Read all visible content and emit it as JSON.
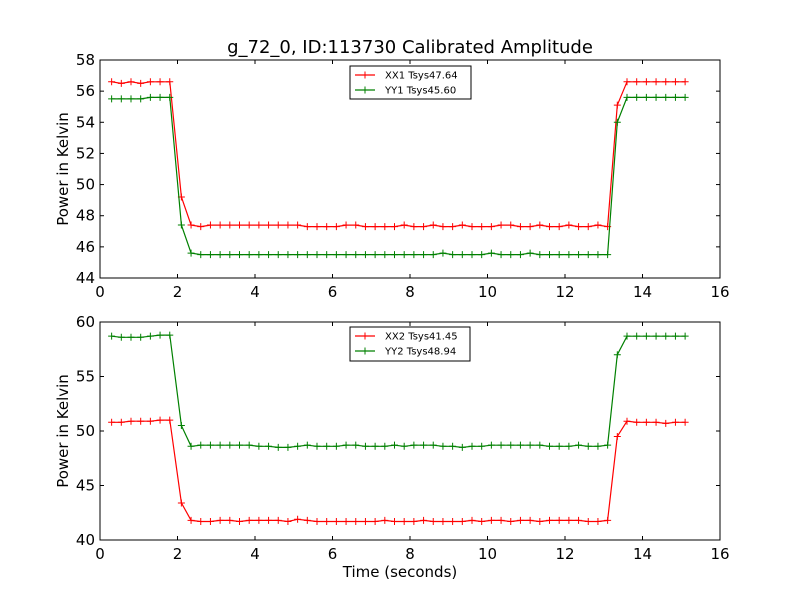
{
  "title": "g_72_0, ID:113730 Calibrated Amplitude",
  "chart_data": [
    {
      "type": "line",
      "xlabel": "",
      "ylabel": "Power in Kelvin",
      "xlim": [
        0,
        16
      ],
      "ylim": [
        44,
        58
      ],
      "xticks": [
        "0",
        "2",
        "4",
        "6",
        "8",
        "10",
        "12",
        "14",
        "16"
      ],
      "yticks": [
        "44",
        "46",
        "48",
        "50",
        "52",
        "54",
        "56",
        "58"
      ],
      "legend_position": "top-center",
      "x": [
        0.3,
        0.55,
        0.8,
        1.05,
        1.3,
        1.55,
        1.8,
        2.1,
        2.35,
        2.6,
        2.85,
        3.1,
        3.35,
        3.6,
        3.85,
        4.1,
        4.35,
        4.6,
        4.85,
        5.1,
        5.35,
        5.6,
        5.85,
        6.1,
        6.35,
        6.6,
        6.85,
        7.1,
        7.35,
        7.6,
        7.85,
        8.1,
        8.35,
        8.6,
        8.85,
        9.1,
        9.35,
        9.6,
        9.85,
        10.1,
        10.35,
        10.6,
        10.85,
        11.1,
        11.35,
        11.6,
        11.85,
        12.1,
        12.35,
        12.6,
        12.85,
        13.1,
        13.35,
        13.6,
        13.85,
        14.1,
        14.35,
        14.6,
        14.85,
        15.1
      ],
      "series": [
        {
          "name": "XX1 Tsys47.64",
          "color": "#ff0000",
          "values": [
            56.6,
            56.5,
            56.6,
            56.5,
            56.6,
            56.6,
            56.6,
            49.2,
            47.4,
            47.3,
            47.4,
            47.4,
            47.4,
            47.4,
            47.4,
            47.4,
            47.4,
            47.4,
            47.4,
            47.4,
            47.3,
            47.3,
            47.3,
            47.3,
            47.4,
            47.4,
            47.3,
            47.3,
            47.3,
            47.3,
            47.4,
            47.3,
            47.3,
            47.4,
            47.3,
            47.3,
            47.4,
            47.3,
            47.3,
            47.3,
            47.4,
            47.4,
            47.3,
            47.3,
            47.4,
            47.3,
            47.3,
            47.4,
            47.3,
            47.3,
            47.4,
            47.3,
            55.1,
            56.6,
            56.6,
            56.6,
            56.6,
            56.6,
            56.6,
            56.6
          ]
        },
        {
          "name": "YY1 Tsys45.60",
          "color": "#008000",
          "values": [
            55.5,
            55.5,
            55.5,
            55.5,
            55.6,
            55.6,
            55.6,
            47.4,
            45.6,
            45.5,
            45.5,
            45.5,
            45.5,
            45.5,
            45.5,
            45.5,
            45.5,
            45.5,
            45.5,
            45.5,
            45.5,
            45.5,
            45.5,
            45.5,
            45.5,
            45.5,
            45.5,
            45.5,
            45.5,
            45.5,
            45.5,
            45.5,
            45.5,
            45.5,
            45.6,
            45.5,
            45.5,
            45.5,
            45.5,
            45.6,
            45.5,
            45.5,
            45.5,
            45.6,
            45.5,
            45.5,
            45.5,
            45.5,
            45.5,
            45.5,
            45.5,
            45.5,
            54.0,
            55.6,
            55.6,
            55.6,
            55.6,
            55.6,
            55.6,
            55.6
          ]
        }
      ]
    },
    {
      "type": "line",
      "xlabel": "Time (seconds)",
      "ylabel": "Power in Kelvin",
      "xlim": [
        0,
        16
      ],
      "ylim": [
        40,
        60
      ],
      "xticks": [
        "0",
        "2",
        "4",
        "6",
        "8",
        "10",
        "12",
        "14",
        "16"
      ],
      "yticks": [
        "40",
        "45",
        "50",
        "55",
        "60"
      ],
      "legend_position": "top-center",
      "x": [
        0.3,
        0.55,
        0.8,
        1.05,
        1.3,
        1.55,
        1.8,
        2.1,
        2.35,
        2.6,
        2.85,
        3.1,
        3.35,
        3.6,
        3.85,
        4.1,
        4.35,
        4.6,
        4.85,
        5.1,
        5.35,
        5.6,
        5.85,
        6.1,
        6.35,
        6.6,
        6.85,
        7.1,
        7.35,
        7.6,
        7.85,
        8.1,
        8.35,
        8.6,
        8.85,
        9.1,
        9.35,
        9.6,
        9.85,
        10.1,
        10.35,
        10.6,
        10.85,
        11.1,
        11.35,
        11.6,
        11.85,
        12.1,
        12.35,
        12.6,
        12.85,
        13.1,
        13.35,
        13.6,
        13.85,
        14.1,
        14.35,
        14.6,
        14.85,
        15.1
      ],
      "series": [
        {
          "name": "XX2 Tsys41.45",
          "color": "#ff0000",
          "values": [
            50.8,
            50.8,
            50.9,
            50.9,
            50.9,
            51.0,
            51.0,
            43.4,
            41.8,
            41.7,
            41.7,
            41.8,
            41.8,
            41.7,
            41.8,
            41.8,
            41.8,
            41.8,
            41.7,
            41.9,
            41.8,
            41.7,
            41.7,
            41.7,
            41.7,
            41.7,
            41.7,
            41.7,
            41.8,
            41.7,
            41.7,
            41.7,
            41.8,
            41.7,
            41.7,
            41.7,
            41.7,
            41.8,
            41.7,
            41.8,
            41.8,
            41.7,
            41.8,
            41.8,
            41.7,
            41.8,
            41.8,
            41.8,
            41.8,
            41.7,
            41.7,
            41.8,
            49.5,
            50.9,
            50.8,
            50.8,
            50.8,
            50.7,
            50.8,
            50.8
          ]
        },
        {
          "name": "YY2 Tsys48.94",
          "color": "#008000",
          "values": [
            58.7,
            58.6,
            58.6,
            58.6,
            58.7,
            58.8,
            58.8,
            50.5,
            48.6,
            48.7,
            48.7,
            48.7,
            48.7,
            48.7,
            48.7,
            48.6,
            48.6,
            48.5,
            48.5,
            48.6,
            48.7,
            48.6,
            48.6,
            48.6,
            48.7,
            48.7,
            48.6,
            48.6,
            48.6,
            48.7,
            48.6,
            48.7,
            48.7,
            48.7,
            48.6,
            48.6,
            48.5,
            48.6,
            48.6,
            48.7,
            48.7,
            48.7,
            48.7,
            48.7,
            48.7,
            48.6,
            48.6,
            48.6,
            48.7,
            48.6,
            48.6,
            48.7,
            57.0,
            58.7,
            58.7,
            58.7,
            58.7,
            58.7,
            58.7,
            58.7
          ]
        }
      ]
    }
  ]
}
